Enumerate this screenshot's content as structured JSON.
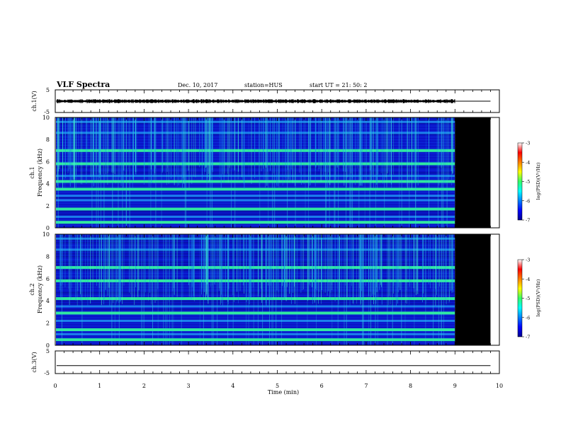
{
  "header": {
    "title": "VLF Spectra",
    "date": "Dec. 10, 2017",
    "station": "station=HUS",
    "start": "start UT = 21: 50: 2"
  },
  "colors": {
    "spectrogram_base": "#0a14c8",
    "background": "#ffffff",
    "blank": "#000000"
  },
  "chart_data": [
    {
      "id": "ch1-waveform",
      "type": "line",
      "ylabel": "ch.1(V)",
      "ylim": [
        -5,
        5
      ],
      "yticks": [
        "5",
        "-5"
      ],
      "xlim": [
        0,
        10
      ],
      "trace_amplitude_v": 0.6,
      "trace_end_min": 9.0,
      "flat_after_min": 9.0,
      "flat_until_min": 9.8
    },
    {
      "id": "ch1-spectrogram",
      "type": "heatmap",
      "ylabel": "ch.1",
      "ylabel2": "Frequency (kHz)",
      "ylim": [
        0,
        10
      ],
      "yticks": [
        "0",
        "2",
        "4",
        "6",
        "8",
        "10"
      ],
      "xlim": [
        0,
        10
      ],
      "data_end_min": 9.0,
      "blank_until_min": 9.8,
      "bright_bands_khz": [
        0.5,
        1.7,
        3.5,
        4.2,
        5.8,
        7.0
      ],
      "moderate_bands_khz": [
        1.0,
        2.5,
        2.9,
        4.7,
        8.6,
        9.6
      ],
      "colorbar": {
        "label": "log(PSD)(V²/Hz)",
        "range": [
          -7,
          -3
        ],
        "ticks": [
          "-3",
          "-4",
          "-5",
          "-6",
          "-7"
        ]
      }
    },
    {
      "id": "ch2-spectrogram",
      "type": "heatmap",
      "ylabel": "ch.2",
      "ylabel2": "Frequency (kHz)",
      "ylim": [
        0,
        10
      ],
      "yticks": [
        "0",
        "2",
        "4",
        "6",
        "8",
        "10"
      ],
      "xlim": [
        0,
        10
      ],
      "data_end_min": 9.0,
      "blank_until_min": 9.8,
      "bright_bands_khz": [
        0.5,
        1.4,
        2.9,
        4.2,
        5.8,
        7.0
      ],
      "moderate_bands_khz": [
        1.0,
        2.2,
        3.5,
        8.6,
        9.6
      ],
      "colorbar": {
        "label": "log(PSD)(V²/Hz)",
        "range": [
          -7,
          -3
        ],
        "ticks": [
          "-3",
          "-4",
          "-5",
          "-6",
          "-7"
        ]
      }
    },
    {
      "id": "ch3-waveform",
      "type": "line",
      "ylabel": "ch.3(V)",
      "ylim": [
        -5,
        5
      ],
      "yticks": [
        "5",
        "-5"
      ],
      "xlim": [
        0,
        10
      ],
      "trace_amplitude_v": 0,
      "trace_level_v": -1.5,
      "trace_end_min": 9.8,
      "xticks": [
        "0",
        "1",
        "2",
        "3",
        "4",
        "5",
        "6",
        "7",
        "8",
        "9",
        "10"
      ],
      "xlabel": "Time (min)"
    }
  ]
}
